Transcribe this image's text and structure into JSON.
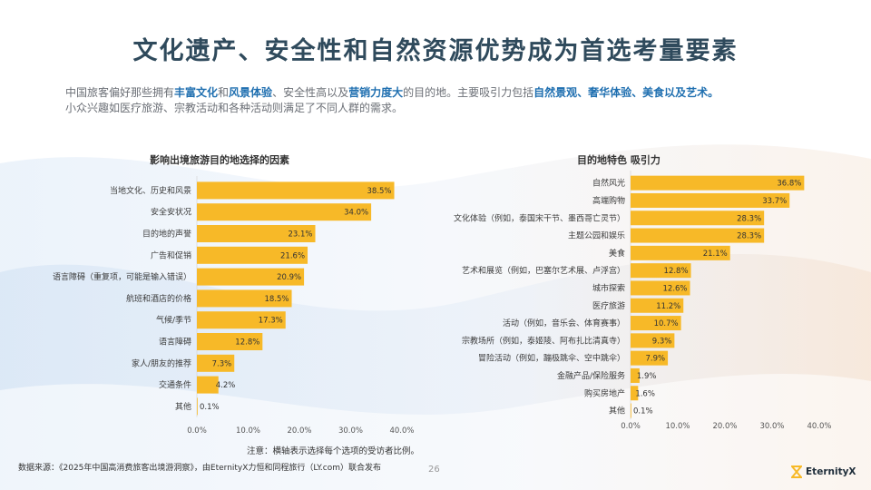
{
  "page": {
    "title": "文化遗产、安全性和自然资源优势成为首选考量要素",
    "intro": [
      {
        "t": "中国旅客偏好那些拥有",
        "b": false
      },
      {
        "t": "丰富文化",
        "b": true
      },
      {
        "t": "和",
        "b": false
      },
      {
        "t": "风景体验",
        "b": true
      },
      {
        "t": "、安全性高以及",
        "b": false
      },
      {
        "t": "营销力度大",
        "b": true
      },
      {
        "t": "的目的地。主要吸引力包括",
        "b": false
      },
      {
        "t": "自然景观、奢华体验、美食以及艺术。",
        "b": true
      },
      {
        "t": "小众兴趣如医疗旅游、宗教活动和各种活动则满足了不同人群的需求。",
        "b": false
      }
    ],
    "note": "注意：横轴表示选择每个选项的受访者比例。",
    "source": "数据来源：《2025年中国高消费旅客出境游洞察》，由EternityX力恒和同程旅行（LY.com）联合发布",
    "page_number": "26",
    "brand": "EternityX",
    "colors": {
      "bar": "#f7b928",
      "title": "#2f4a5c",
      "highlight": "#1f6fb0"
    }
  },
  "chart_data": [
    {
      "type": "bar",
      "orientation": "horizontal",
      "title": "影响出境旅游目的地选择的因素",
      "categories": [
        "当地文化、历史和风景",
        "安全安状况",
        "目的地的声誉",
        "广告和促销",
        "语言障碍（重复项，可能是输入错误）",
        "航班和酒店的价格",
        "气候/季节",
        "语言障碍",
        "家人/朋友的推荐",
        "交通条件",
        "其他"
      ],
      "values": [
        38.5,
        34.0,
        23.1,
        21.6,
        20.9,
        18.5,
        17.3,
        12.8,
        7.3,
        4.2,
        0.1
      ],
      "value_labels": [
        "38.5%",
        "34.0%",
        "23.1%",
        "21.6%",
        "20.9%",
        "18.5%",
        "17.3%",
        "12.8%",
        "7.3%",
        "4.2%",
        "0.1%"
      ],
      "ticks": [
        "0.0%",
        "10.0%",
        "20.0%",
        "30.0%",
        "40.0%"
      ],
      "xlim": [
        0,
        40
      ],
      "grid": false
    },
    {
      "type": "bar",
      "orientation": "horizontal",
      "title": "目的地特色 吸引力",
      "categories": [
        "自然风光",
        "高端购物",
        "文化体验（例如，泰国宋干节、墨西哥亡灵节）",
        "主题公园和娱乐",
        "美食",
        "艺术和展览（例如，巴塞尔艺术展、卢浮宫）",
        "城市探索",
        "医疗旅游",
        "活动（例如，音乐会、体育赛事）",
        "宗教场所（例如，泰姬陵、阿布扎比清真寺）",
        "冒险活动（例如，蹦极跳伞、空中跳伞）",
        "金融产品/保险服务",
        "购买房地产",
        "其他"
      ],
      "values": [
        36.8,
        33.7,
        28.3,
        28.3,
        21.1,
        12.8,
        12.6,
        11.2,
        10.7,
        9.3,
        7.9,
        1.9,
        1.6,
        0.1
      ],
      "value_labels": [
        "36.8%",
        "33.7%",
        "28.3%",
        "28.3%",
        "21.1%",
        "12.8%",
        "12.6%",
        "11.2%",
        "10.7%",
        "9.3%",
        "7.9%",
        "1.9%",
        "1.6%",
        "0.1%"
      ],
      "ticks": [
        "0.0%",
        "10.0%",
        "20.0%",
        "30.0%",
        "40.0%"
      ],
      "xlim": [
        0,
        40
      ],
      "grid": false
    }
  ]
}
